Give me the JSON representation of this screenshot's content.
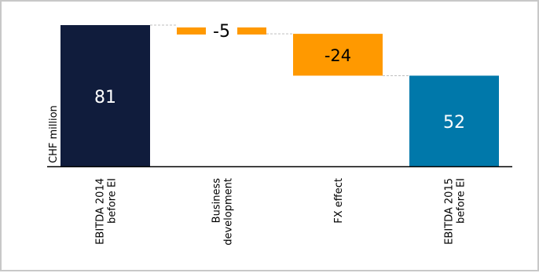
{
  "chart_data": {
    "type": "waterfall",
    "ylabel": "CHF million",
    "ylim": [
      0,
      81
    ],
    "categories": [
      [
        "EBITDA 2014",
        "before EI"
      ],
      [
        "Business",
        "development"
      ],
      [
        "FX effect"
      ],
      [
        "EBITDA 2015",
        "before EI"
      ]
    ],
    "values": [
      81,
      -5,
      -24,
      52
    ],
    "value_labels": [
      "81",
      "-5",
      "-24",
      "52"
    ],
    "kinds": [
      "total",
      "delta",
      "delta",
      "total"
    ],
    "colors": {
      "total_start": "#101c3c",
      "delta": "#ff9900",
      "total_end": "#0078aa",
      "connector": "#bfbfbf",
      "axis": "#000000"
    }
  }
}
